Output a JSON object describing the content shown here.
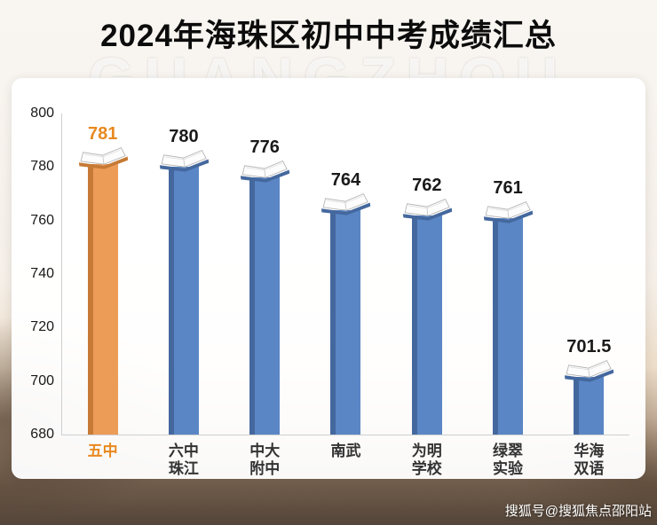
{
  "title": "2024年海珠区初中中考成绩汇总",
  "background_watermark": "GUANGZHOU",
  "credit": "搜狐号@搜狐焦点邵阳站",
  "chart_data": {
    "type": "bar",
    "title": "2024年海珠区初中中考成绩汇总",
    "categories": [
      "五中",
      "六中\n珠江",
      "中大\n附中",
      "南武",
      "为明\n学校",
      "绿翠\n实验",
      "华海\n双语"
    ],
    "values": [
      781,
      780,
      776,
      764,
      762,
      761,
      701.5
    ],
    "value_labels": [
      "781",
      "780",
      "776",
      "764",
      "762",
      "761",
      "701.5"
    ],
    "highlight_index": 0,
    "ylim": [
      680,
      800
    ],
    "yticks": [
      680,
      700,
      720,
      740,
      760,
      780,
      800
    ],
    "xlabel": "",
    "ylabel": "",
    "grid": false,
    "legend": "none",
    "bar_style": "book-topped-column",
    "colors": {
      "bar": "#5B86C5",
      "bar_dark": "#44689E",
      "highlight": "#ED9C57",
      "highlight_dark": "#C67A35",
      "value_text": "#1a1a1a",
      "value_text_highlight": "#E8891F",
      "xlabel_text": "#333333",
      "xlabel_text_highlight": "#E8891F",
      "axis_line": "#cfcfcf",
      "panel_bg": "#ffffff"
    }
  }
}
